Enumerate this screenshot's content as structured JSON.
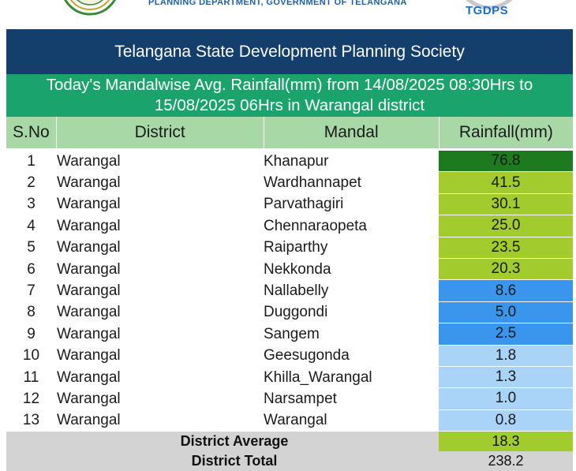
{
  "header": {
    "department": "PLANNING DEPARTMENT, GOVERNMENT OF TELANGANA",
    "brand": "TGDPS"
  },
  "report": {
    "title": "Telangana State Development Planning Society",
    "subtitle_line1": "Today's Mandalwise Avg. Rainfall(mm) from 14/08/2025 08:30Hrs to",
    "subtitle_line2": "15/08/2025 06Hrs in Warangal district",
    "columns": {
      "sno": "S.No",
      "district": "District",
      "mandal": "Mandal",
      "rainfall": "Rainfall(mm)"
    },
    "rows": [
      {
        "sno": "1",
        "district": "Warangal",
        "mandal": "Khanapur",
        "rainfall": "76.8",
        "color": "#1e7a1e"
      },
      {
        "sno": "2",
        "district": "Warangal",
        "mandal": "Wardhannapet",
        "rainfall": "41.5",
        "color": "#a2cc2e"
      },
      {
        "sno": "3",
        "district": "Warangal",
        "mandal": "Parvathagiri",
        "rainfall": "30.1",
        "color": "#a2cc2e"
      },
      {
        "sno": "4",
        "district": "Warangal",
        "mandal": "Chennaraopeta",
        "rainfall": "25.0",
        "color": "#a2cc2e"
      },
      {
        "sno": "5",
        "district": "Warangal",
        "mandal": "Raiparthy",
        "rainfall": "23.5",
        "color": "#a2cc2e"
      },
      {
        "sno": "6",
        "district": "Warangal",
        "mandal": "Nekkonda",
        "rainfall": "20.3",
        "color": "#a2cc2e"
      },
      {
        "sno": "7",
        "district": "Warangal",
        "mandal": "Nallabelly",
        "rainfall": "8.6",
        "color": "#3a95ec"
      },
      {
        "sno": "8",
        "district": "Warangal",
        "mandal": "Duggondi",
        "rainfall": "5.0",
        "color": "#3a95ec"
      },
      {
        "sno": "9",
        "district": "Warangal",
        "mandal": "Sangem",
        "rainfall": "2.5",
        "color": "#3a95ec"
      },
      {
        "sno": "10",
        "district": "Warangal",
        "mandal": "Geesugonda",
        "rainfall": "1.8",
        "color": "#a9d4f7"
      },
      {
        "sno": "11",
        "district": "Warangal",
        "mandal": "Khilla_Warangal",
        "rainfall": "1.3",
        "color": "#a9d4f7"
      },
      {
        "sno": "12",
        "district": "Warangal",
        "mandal": "Narsampet",
        "rainfall": "1.0",
        "color": "#a9d4f7"
      },
      {
        "sno": "13",
        "district": "Warangal",
        "mandal": "Warangal",
        "rainfall": "0.8",
        "color": "#a9d4f7"
      }
    ],
    "average": {
      "label": "District Average",
      "value": "18.3",
      "color": "#a2cc2e"
    },
    "total": {
      "label": "District Total",
      "value": "238.2"
    }
  },
  "colors": {
    "title_bg": "#143f6c",
    "subtitle_bg": "#1aa46b",
    "header_bg": "#a8d8a5",
    "footer_bg": "#d3d3d3"
  }
}
